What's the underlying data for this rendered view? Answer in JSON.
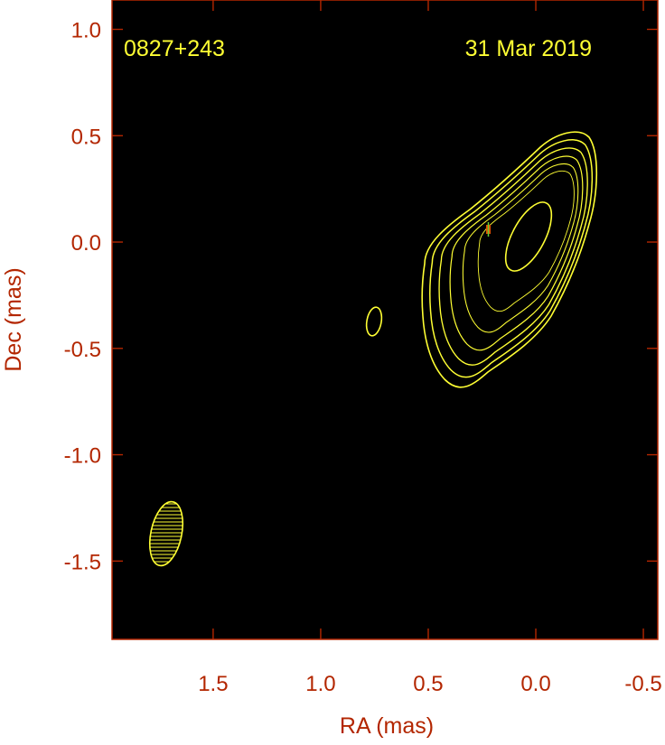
{
  "chart_data": {
    "type": "contour",
    "annotations": [
      "0827+243",
      "31 Mar 2019"
    ],
    "x_label": "RA (mas)",
    "y_label": "Dec (mas)",
    "xlim": [
      1.97,
      -0.567
    ],
    "ylim": [
      -1.868,
      1.138
    ],
    "xticks": [
      {
        "value": 1.5,
        "label": "1.5"
      },
      {
        "value": 1,
        "label": "1.0"
      },
      {
        "value": 0.5,
        "label": "0.5"
      },
      {
        "value": 0,
        "label": "0.0"
      },
      {
        "value": -0.5,
        "label": "-0.5"
      }
    ],
    "yticks": [
      {
        "value": 1,
        "label": "1.0"
      },
      {
        "value": 0.5,
        "label": "0.5"
      },
      {
        "value": 0,
        "label": "0.0"
      },
      {
        "value": -0.5,
        "label": "-0.5"
      },
      {
        "value": -1,
        "label": "-1.0"
      },
      {
        "value": -1.5,
        "label": "-1.5"
      }
    ]
  }
}
